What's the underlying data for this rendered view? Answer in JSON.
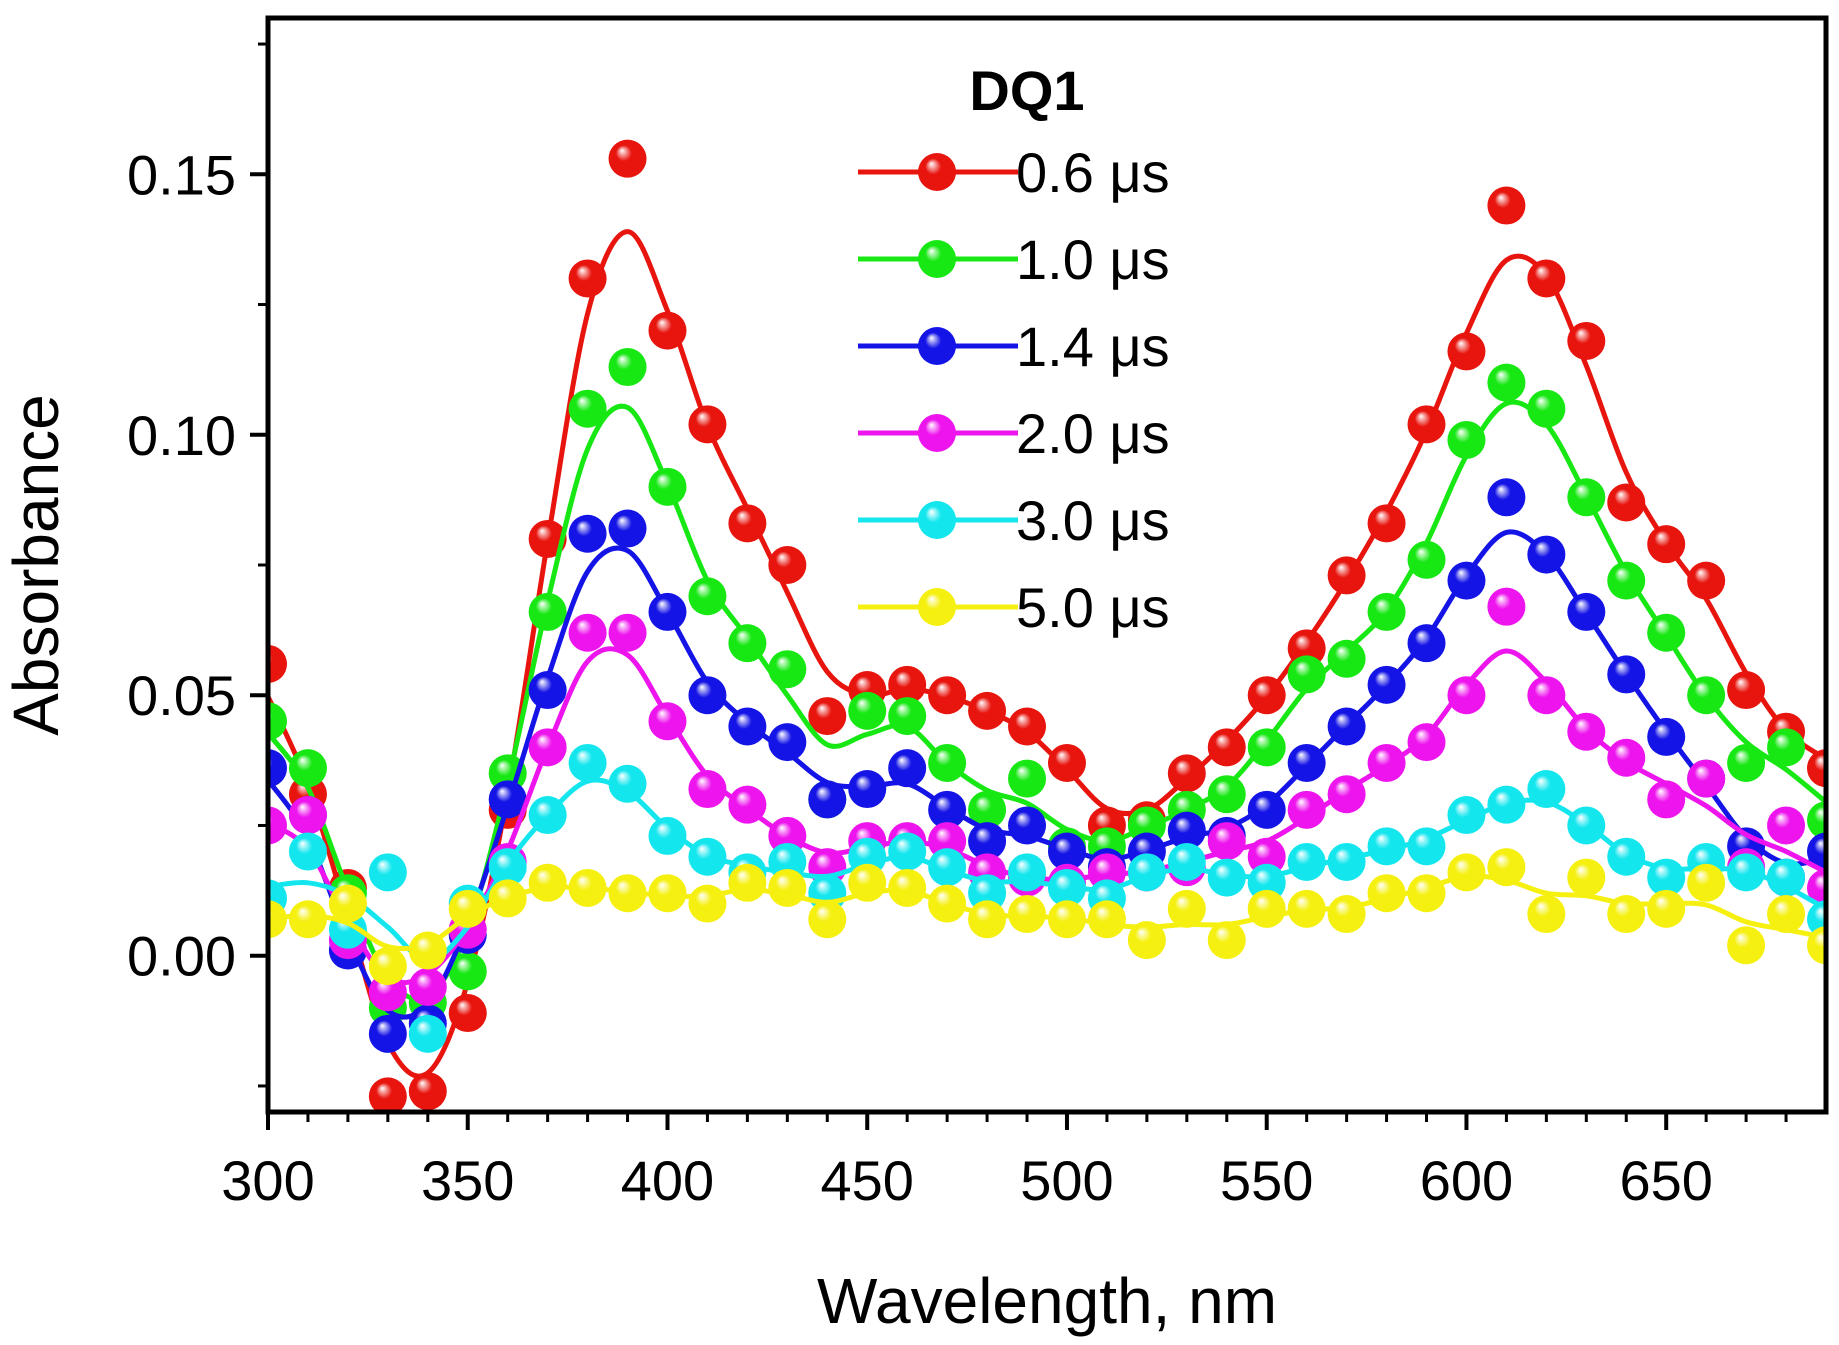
{
  "chart_data": {
    "type": "line",
    "title": "DQ1",
    "xlabel": "Wavelength, nm",
    "ylabel": "Absorbance",
    "xlim": [
      300,
      690
    ],
    "ylim": [
      -0.03,
      0.18
    ],
    "x_ticks": [
      300,
      350,
      400,
      450,
      500,
      550,
      600,
      650
    ],
    "y_ticks": [
      0.0,
      0.05,
      0.1,
      0.15
    ],
    "x_tick_labels": [
      "300",
      "350",
      "400",
      "450",
      "500",
      "550",
      "600",
      "650"
    ],
    "y_tick_labels": [
      "0.00",
      "0.05",
      "0.10",
      "0.15"
    ],
    "legend_position": "top-center",
    "x": [
      300,
      310,
      320,
      330,
      340,
      350,
      360,
      370,
      380,
      390,
      400,
      410,
      420,
      430,
      440,
      450,
      460,
      470,
      480,
      490,
      500,
      510,
      520,
      530,
      540,
      550,
      560,
      570,
      580,
      590,
      600,
      610,
      620,
      630,
      640,
      650,
      660,
      670,
      680,
      690
    ],
    "series": [
      {
        "name": "0.6 μs",
        "color": "#e8140e",
        "values": [
          0.056,
          0.031,
          0.013,
          -0.027,
          -0.026,
          -0.011,
          0.028,
          0.08,
          0.13,
          0.153,
          0.12,
          0.102,
          0.083,
          0.075,
          0.046,
          0.051,
          0.052,
          0.05,
          0.047,
          0.044,
          0.037,
          0.025,
          0.026,
          0.035,
          0.04,
          0.05,
          0.059,
          0.073,
          0.083,
          0.102,
          0.116,
          0.144,
          0.13,
          0.118,
          0.087,
          0.079,
          0.072,
          0.051,
          0.043,
          0.036
        ]
      },
      {
        "name": "1.0 μs",
        "color": "#17e814",
        "values": [
          0.045,
          0.036,
          0.012,
          -0.01,
          -0.009,
          -0.003,
          0.035,
          0.066,
          0.105,
          0.113,
          0.09,
          0.069,
          0.06,
          0.055,
          0.03,
          0.047,
          0.046,
          0.037,
          0.028,
          0.034,
          0.021,
          0.021,
          0.025,
          0.028,
          0.031,
          0.04,
          0.054,
          0.057,
          0.066,
          0.076,
          0.099,
          0.11,
          0.105,
          0.088,
          0.072,
          0.062,
          0.05,
          0.037,
          0.04,
          0.026
        ]
      },
      {
        "name": "1.4 μs",
        "color": "#1414e6",
        "values": [
          0.036,
          0.027,
          0.001,
          -0.015,
          -0.013,
          0.004,
          0.03,
          0.051,
          0.081,
          0.082,
          0.066,
          0.05,
          0.044,
          0.041,
          0.03,
          0.032,
          0.036,
          0.028,
          0.022,
          0.025,
          0.02,
          0.017,
          0.02,
          0.024,
          0.023,
          0.028,
          0.037,
          0.044,
          0.052,
          0.06,
          0.072,
          0.088,
          0.077,
          0.066,
          0.054,
          0.042,
          0.034,
          0.021,
          0.015,
          0.02
        ]
      },
      {
        "name": "2.0 μs",
        "color": "#ee14ee",
        "values": [
          0.025,
          0.027,
          0.003,
          -0.007,
          -0.006,
          0.005,
          0.018,
          0.04,
          0.062,
          0.062,
          0.045,
          0.032,
          0.029,
          0.023,
          0.017,
          0.022,
          0.022,
          0.022,
          0.016,
          0.015,
          0.014,
          0.016,
          0.016,
          0.017,
          0.022,
          0.019,
          0.028,
          0.031,
          0.037,
          0.041,
          0.05,
          0.067,
          0.05,
          0.043,
          0.038,
          0.03,
          0.034,
          0.017,
          0.025,
          0.013
        ]
      },
      {
        "name": "3.0 μs",
        "color": "#14e6ee",
        "values": [
          0.011,
          0.02,
          0.005,
          0.016,
          -0.015,
          0.01,
          0.017,
          0.027,
          0.037,
          0.033,
          0.023,
          0.019,
          0.016,
          0.018,
          0.012,
          0.019,
          0.02,
          0.017,
          0.012,
          0.016,
          0.013,
          0.011,
          0.016,
          0.018,
          0.015,
          0.014,
          0.018,
          0.018,
          0.021,
          0.021,
          0.027,
          0.029,
          0.032,
          0.025,
          0.019,
          0.015,
          0.018,
          0.016,
          0.015,
          0.007
        ]
      },
      {
        "name": "5.0 μs",
        "color": "#f5f00f",
        "values": [
          0.007,
          0.007,
          0.01,
          -0.002,
          0.001,
          0.009,
          0.011,
          0.014,
          0.013,
          0.012,
          0.012,
          0.01,
          0.014,
          0.013,
          0.007,
          0.014,
          0.013,
          0.01,
          0.007,
          0.008,
          0.007,
          0.007,
          0.003,
          0.009,
          0.003,
          0.009,
          0.009,
          0.008,
          0.012,
          0.012,
          0.016,
          0.017,
          0.008,
          0.015,
          0.008,
          0.009,
          0.014,
          0.002,
          0.008,
          0.002
        ]
      }
    ]
  }
}
